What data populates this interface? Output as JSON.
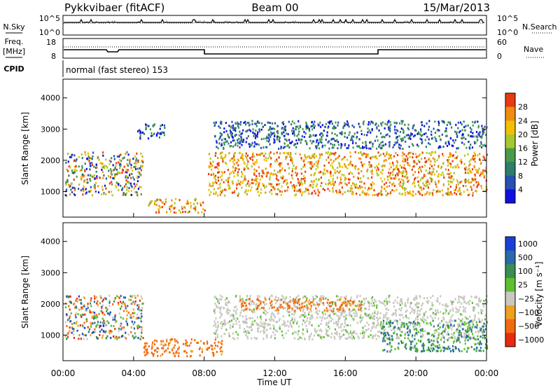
{
  "header": {
    "station": "Pykkvibaer (fitACF)",
    "beam": "Beam 00",
    "date": "15/Mar/2013"
  },
  "noise_panel": {
    "left_label": "N.Sky",
    "left_ticks": [
      "10^5",
      "10^0"
    ],
    "right_label": "N.Search",
    "right_ticks": [
      "10^5",
      "10^0"
    ]
  },
  "freq_panel": {
    "left_label_1": "Freq.",
    "left_label_2": "[MHz]",
    "left_ticks": [
      "18",
      "8"
    ],
    "right_label": "Nave",
    "right_ticks": [
      "60",
      "0"
    ]
  },
  "cpid_panel": {
    "label": "CPID",
    "text": "normal (fast stereo) 153"
  },
  "x_axis": {
    "label": "Time UT",
    "ticks": [
      "00:00",
      "04:00",
      "08:00",
      "12:00",
      "16:00",
      "20:00",
      "00:00"
    ]
  },
  "chart_data": [
    {
      "type": "heatmap",
      "name": "power",
      "xlabel": "Time UT",
      "ylabel": "Slant Range [km]",
      "xlim": [
        0,
        24
      ],
      "ylim": [
        180,
        4600
      ],
      "yticks": [
        1000,
        2000,
        3000,
        4000
      ],
      "colorbar": {
        "label": "Power [dB]",
        "range": [
          0,
          32
        ],
        "ticks": [
          "4",
          "8",
          "12",
          "16",
          "20",
          "24",
          "28"
        ],
        "colors": [
          "#1010e0",
          "#2850b0",
          "#2e7e6a",
          "#4a9a4a",
          "#a8c830",
          "#f2c000",
          "#f08c10",
          "#e83a10"
        ]
      },
      "regions": [
        {
          "t0": 0.1,
          "t1": 4.5,
          "r0": 900,
          "r1": 2300,
          "level": "mixed"
        },
        {
          "t0": 4.2,
          "t1": 5.8,
          "r0": 2700,
          "r1": 3200,
          "level": "weak"
        },
        {
          "t0": 4.8,
          "t1": 8.0,
          "r0": 350,
          "r1": 800,
          "level": "strong"
        },
        {
          "t0": 8.2,
          "t1": 24.0,
          "r0": 900,
          "r1": 2300,
          "level": "strong"
        },
        {
          "t0": 8.5,
          "t1": 24.0,
          "r0": 2400,
          "r1": 3300,
          "level": "weak"
        }
      ]
    },
    {
      "type": "heatmap",
      "name": "velocity",
      "xlabel": "Time UT",
      "ylabel": "Slant Range [km]",
      "xlim": [
        0,
        24
      ],
      "ylim": [
        180,
        4600
      ],
      "yticks": [
        1000,
        2000,
        3000,
        4000
      ],
      "colorbar": {
        "label": "Velocity [m s⁻¹]",
        "ticks": [
          "1000",
          "500",
          "100",
          "25",
          "−25",
          "−100",
          "−500",
          "−1000"
        ],
        "colors": [
          "#1a3fd6",
          "#2a6aa8",
          "#3a8e54",
          "#5ec030",
          "#c8c8c0",
          "#f0a020",
          "#f06a10",
          "#e82a10"
        ]
      },
      "regions": [
        {
          "t0": 0.1,
          "t1": 4.5,
          "r0": 900,
          "r1": 2300,
          "level": "mixed"
        },
        {
          "t0": 4.5,
          "t1": 9.0,
          "r0": 350,
          "r1": 900,
          "level": "away"
        },
        {
          "t0": 8.5,
          "t1": 24.0,
          "r0": 900,
          "r1": 2300,
          "level": "grey"
        },
        {
          "t0": 10.0,
          "t1": 17.0,
          "r0": 1800,
          "r1": 2200,
          "level": "away"
        },
        {
          "t0": 18.0,
          "t1": 24.0,
          "r0": 500,
          "r1": 1500,
          "level": "toward"
        }
      ]
    }
  ]
}
